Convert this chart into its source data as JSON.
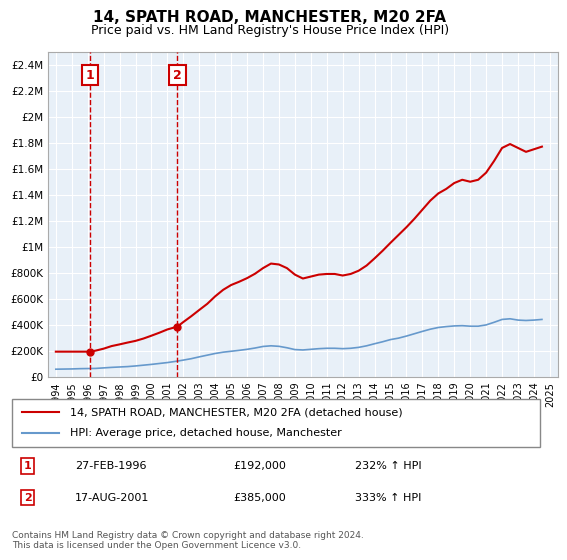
{
  "title": "14, SPATH ROAD, MANCHESTER, M20 2FA",
  "subtitle": "Price paid vs. HM Land Registry's House Price Index (HPI)",
  "legend_line1": "14, SPATH ROAD, MANCHESTER, M20 2FA (detached house)",
  "legend_line2": "HPI: Average price, detached house, Manchester",
  "footnote": "Contains HM Land Registry data © Crown copyright and database right 2024.\nThis data is licensed under the Open Government Licence v3.0.",
  "sale1_label": "1",
  "sale1_date": "27-FEB-1996",
  "sale1_price": "£192,000",
  "sale1_hpi": "232% ↑ HPI",
  "sale1_x": 1996.15,
  "sale1_y": 192000,
  "sale2_label": "2",
  "sale2_date": "17-AUG-2001",
  "sale2_price": "£385,000",
  "sale2_hpi": "333% ↑ HPI",
  "sale2_x": 2001.63,
  "sale2_y": 385000,
  "property_line_color": "#cc0000",
  "hpi_line_color": "#6699cc",
  "background_color": "#ffffff",
  "grid_color": "#cccccc",
  "marker_box_color": "#cc0000",
  "ylim": [
    0,
    2500000
  ],
  "xlim": [
    1993.5,
    2025.5
  ],
  "yticks": [
    0,
    200000,
    400000,
    600000,
    800000,
    1000000,
    1200000,
    1400000,
    1600000,
    1800000,
    2000000,
    2200000,
    2400000
  ],
  "ytick_labels": [
    "£0",
    "£200K",
    "£400K",
    "£600K",
    "£800K",
    "£1M",
    "£1.2M",
    "£1.4M",
    "£1.6M",
    "£1.8M",
    "£2M",
    "£2.2M",
    "£2.4M"
  ],
  "xticks": [
    1994,
    1995,
    1996,
    1997,
    1998,
    1999,
    2000,
    2001,
    2002,
    2003,
    2004,
    2005,
    2006,
    2007,
    2008,
    2009,
    2010,
    2011,
    2012,
    2013,
    2014,
    2015,
    2016,
    2017,
    2018,
    2019,
    2020,
    2021,
    2022,
    2023,
    2024,
    2025
  ],
  "hpi_x": [
    1994,
    1994.5,
    1995,
    1995.5,
    1996,
    1996.5,
    1997,
    1997.5,
    1998,
    1998.5,
    1999,
    1999.5,
    2000,
    2000.5,
    2001,
    2001.5,
    2002,
    2002.5,
    2003,
    2003.5,
    2004,
    2004.5,
    2005,
    2005.5,
    2006,
    2006.5,
    2007,
    2007.5,
    2008,
    2008.5,
    2009,
    2009.5,
    2010,
    2010.5,
    2011,
    2011.5,
    2012,
    2012.5,
    2013,
    2013.5,
    2014,
    2014.5,
    2015,
    2015.5,
    2016,
    2016.5,
    2017,
    2017.5,
    2018,
    2018.5,
    2019,
    2019.5,
    2020,
    2020.5,
    2021,
    2021.5,
    2022,
    2022.5,
    2023,
    2023.5,
    2024,
    2024.5
  ],
  "hpi_y": [
    57000,
    58000,
    59000,
    61000,
    62000,
    63000,
    67000,
    71000,
    74000,
    77000,
    82000,
    88000,
    94000,
    101000,
    108000,
    117000,
    127000,
    138000,
    152000,
    165000,
    178000,
    188000,
    195000,
    202000,
    210000,
    220000,
    232000,
    237000,
    233000,
    222000,
    208000,
    205000,
    210000,
    215000,
    218000,
    218000,
    215000,
    218000,
    225000,
    237000,
    253000,
    268000,
    285000,
    296000,
    312000,
    330000,
    348000,
    365000,
    378000,
    385000,
    390000,
    392000,
    388000,
    388000,
    398000,
    418000,
    440000,
    445000,
    435000,
    432000,
    435000,
    440000
  ],
  "prop_x": [
    1994,
    1995.5,
    1996.15,
    1996.5,
    1997,
    1997.5,
    1998,
    1998.5,
    1999,
    1999.5,
    2000,
    2000.5,
    2001,
    2001.63,
    2002,
    2002.5,
    2003,
    2003.5,
    2004,
    2004.5,
    2005,
    2005.5,
    2006,
    2006.5,
    2007,
    2007.5,
    2008,
    2008.5,
    2009,
    2009.5,
    2010,
    2010.5,
    2011,
    2011.5,
    2012,
    2012.5,
    2013,
    2013.5,
    2014,
    2014.5,
    2015,
    2015.5,
    2016,
    2016.5,
    2017,
    2017.5,
    2018,
    2018.5,
    2019,
    2019.5,
    2020,
    2020.5,
    2021,
    2021.5,
    2022,
    2022.5,
    2023,
    2023.5,
    2024,
    2024.5
  ],
  "prop_y": [
    192000,
    192000,
    192000,
    200000,
    215000,
    235000,
    248000,
    262000,
    275000,
    293000,
    315000,
    338000,
    363000,
    385000,
    420000,
    465000,
    513000,
    560000,
    618000,
    668000,
    705000,
    730000,
    758000,
    792000,
    835000,
    870000,
    863000,
    835000,
    785000,
    755000,
    770000,
    785000,
    790000,
    790000,
    778000,
    790000,
    815000,
    855000,
    910000,
    968000,
    1030000,
    1090000,
    1150000,
    1215000,
    1285000,
    1355000,
    1410000,
    1445000,
    1490000,
    1515000,
    1500000,
    1515000,
    1570000,
    1660000,
    1760000,
    1790000,
    1760000,
    1730000,
    1750000,
    1770000
  ]
}
